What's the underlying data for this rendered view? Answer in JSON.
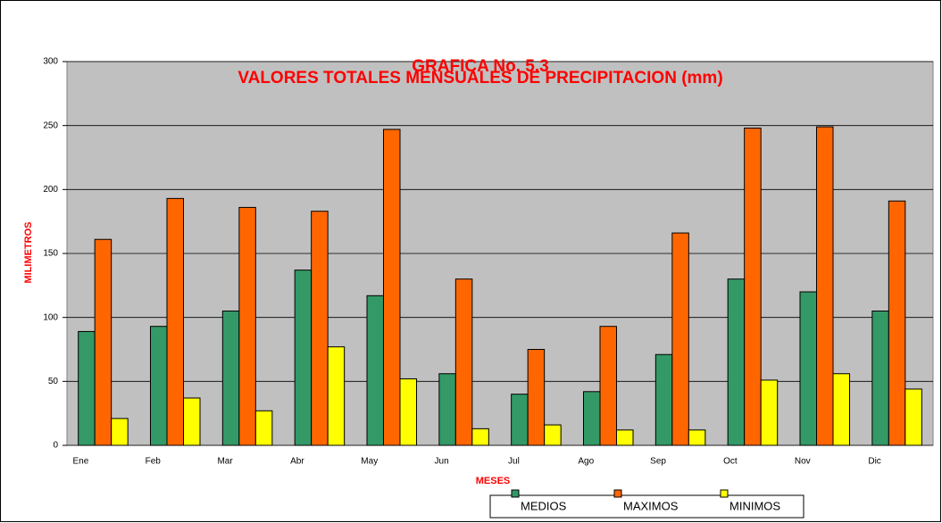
{
  "chart_data": {
    "type": "bar",
    "title": "GRAFICA No. 5.3",
    "subtitle": "VALORES TOTALES MENSUALES DE PRECIPITACION (mm)",
    "x_label": "MESES",
    "y_label": "MILIMETROS",
    "categories": [
      "Ene",
      "Feb",
      "Mar",
      "Abr",
      "May",
      "Jun",
      "Jul",
      "Ago",
      "Sep",
      "Oct",
      "Nov",
      "Dic"
    ],
    "series": [
      {
        "name": "MEDIOS",
        "color": "#339966",
        "values": [
          89,
          93,
          105,
          137,
          117,
          56,
          40,
          42,
          71,
          130,
          120,
          105
        ]
      },
      {
        "name": "MAXIMOS",
        "color": "#ff6600",
        "values": [
          161,
          193,
          186,
          183,
          247,
          130,
          75,
          93,
          166,
          248,
          249,
          191
        ]
      },
      {
        "name": "MINIMOS",
        "color": "#ffff00",
        "values": [
          21,
          37,
          27,
          77,
          52,
          13,
          16,
          12,
          12,
          51,
          56,
          44
        ]
      }
    ],
    "ylim": [
      0,
      300
    ],
    "yticks": [
      0,
      50,
      100,
      150,
      200,
      250,
      300
    ],
    "grid": true
  }
}
